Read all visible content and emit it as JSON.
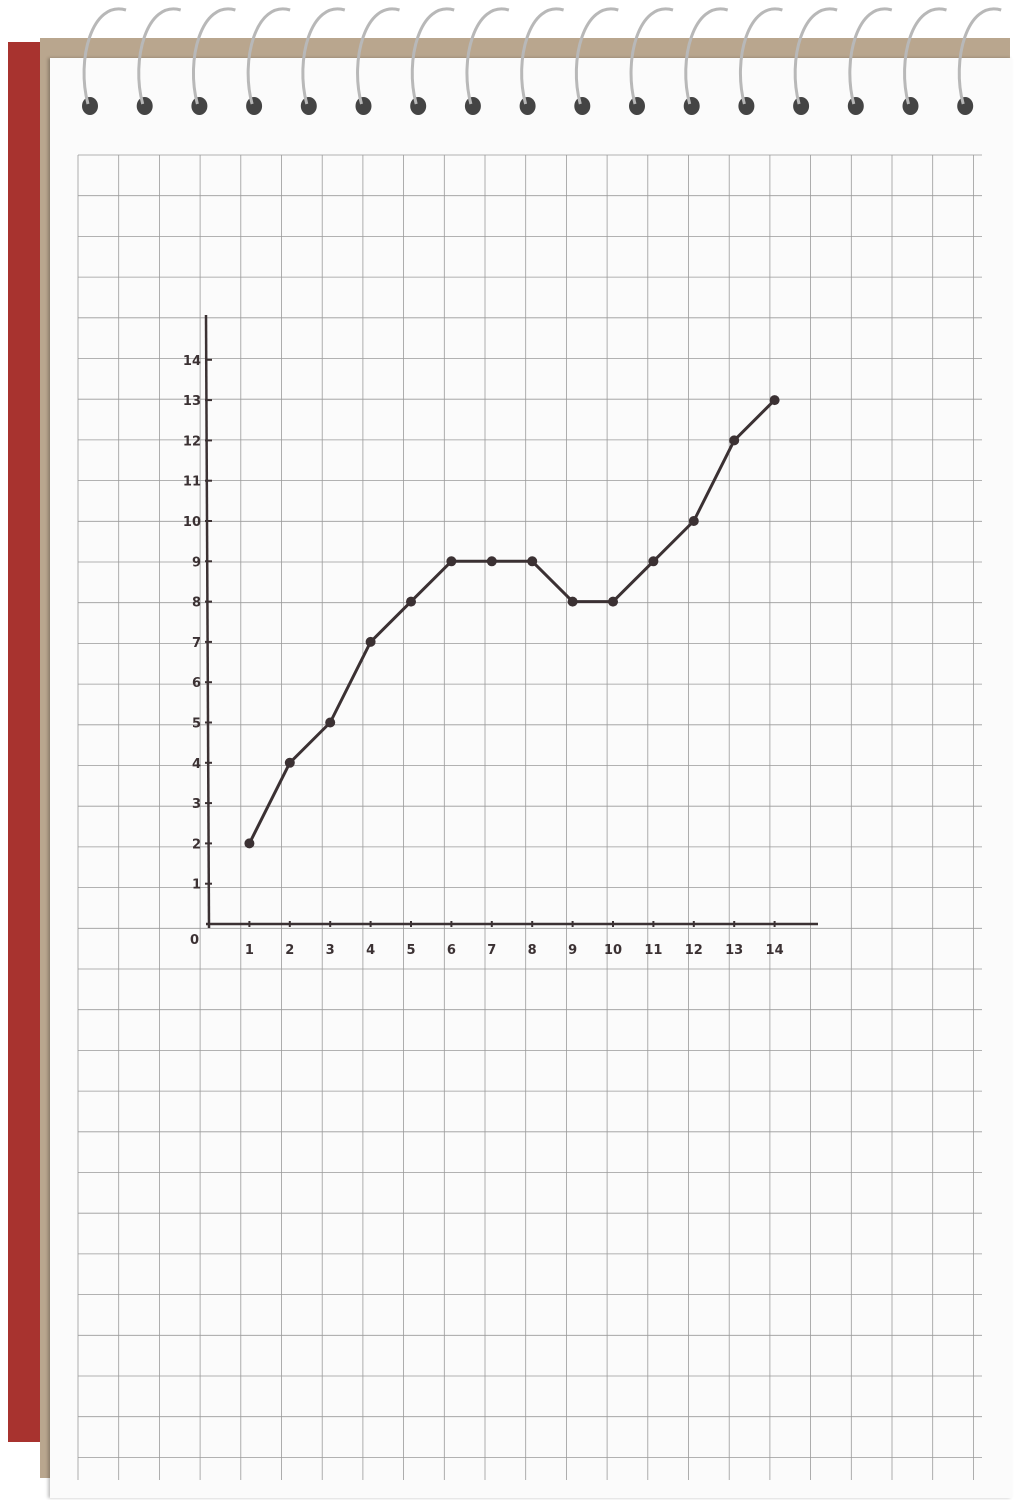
{
  "chart_data": {
    "type": "line",
    "x": [
      1,
      2,
      3,
      4,
      5,
      6,
      7,
      8,
      9,
      10,
      11,
      12,
      13,
      14
    ],
    "y": [
      2,
      4,
      5,
      7,
      8,
      9,
      9,
      9,
      8,
      8,
      9,
      10,
      12,
      13
    ],
    "x_ticks": [
      "1",
      "2",
      "3",
      "4",
      "5",
      "6",
      "7",
      "8",
      "9",
      "10",
      "11",
      "12",
      "13",
      "14"
    ],
    "y_ticks": [
      "1",
      "2",
      "3",
      "4",
      "5",
      "6",
      "7",
      "8",
      "9",
      "10",
      "11",
      "12",
      "13",
      "14"
    ],
    "origin_label": "0",
    "xlim": [
      0,
      15
    ],
    "ylim": [
      0,
      15
    ],
    "grid": true,
    "markers": true,
    "title": "",
    "xlabel": "",
    "ylabel": "",
    "colors": {
      "ink": "#3b3133",
      "grid": "#9a9a9a",
      "paper": "#fbfbfb",
      "cover": "#a8332f"
    }
  }
}
